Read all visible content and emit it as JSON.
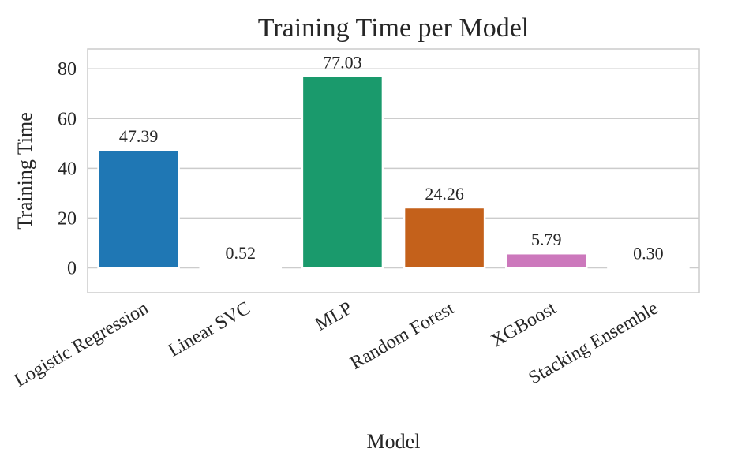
{
  "chart_data": {
    "type": "bar",
    "title": "Training Time per Model",
    "xlabel": "Model",
    "ylabel": "Training Time",
    "categories": [
      "Logistic Regression",
      "Linear SVC",
      "MLP",
      "Random Forest",
      "XGBoost",
      "Stacking Ensemble"
    ],
    "values": [
      47.39,
      0.52,
      77.03,
      24.26,
      5.79,
      0.3
    ],
    "data_labels": [
      "47.39",
      "0.52",
      "77.03",
      "24.26",
      "5.79",
      "0.30"
    ],
    "colors": [
      "#1f77b4",
      "#ff7f0e",
      "#1a9a6c",
      "#c4611b",
      "#cc78bc",
      "#ca9161"
    ],
    "ylim": [
      -10,
      88
    ],
    "yticks": [
      0,
      20,
      40,
      60,
      80
    ],
    "grid": true,
    "x_tick_rotation": 30
  }
}
